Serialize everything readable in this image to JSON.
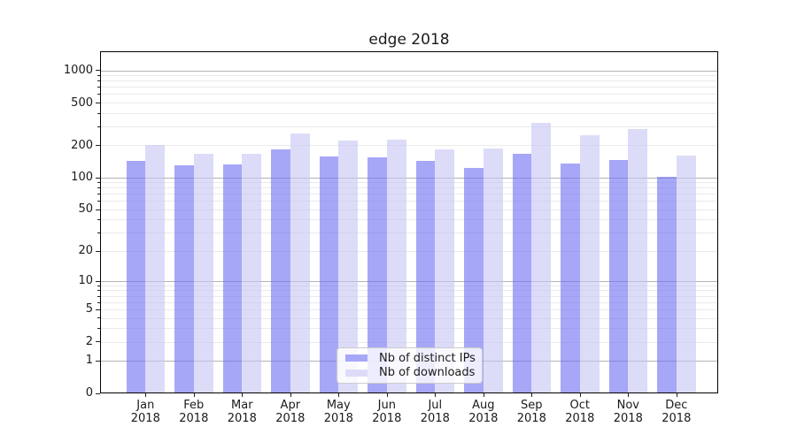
{
  "title": "edge 2018",
  "legend": {
    "items": [
      {
        "label": "Nb of distinct IPs"
      },
      {
        "label": "Nb of downloads"
      }
    ]
  },
  "axes": {
    "y_tick_labels": [
      "0",
      "1",
      "2",
      "5",
      "10",
      "20",
      "50",
      "100",
      "200",
      "500",
      "1000"
    ],
    "x_tick_labels": [
      "Jan 2018",
      "Feb 2018",
      "Mar 2018",
      "Apr 2018",
      "May 2018",
      "Jun 2018",
      "Jul 2018",
      "Aug 2018",
      "Sep 2018",
      "Oct 2018",
      "Nov 2018",
      "Dec 2018"
    ]
  },
  "chart_data": {
    "type": "bar",
    "title": "edge 2018",
    "categories": [
      "Jan 2018",
      "Feb 2018",
      "Mar 2018",
      "Apr 2018",
      "May 2018",
      "Jun 2018",
      "Jul 2018",
      "Aug 2018",
      "Sep 2018",
      "Oct 2018",
      "Nov 2018",
      "Dec 2018"
    ],
    "series": [
      {
        "name": "Nb of distinct IPs",
        "color": "#a7a7f7",
        "fill": "rgba(108,108,242,0.6)",
        "values": [
          142,
          130,
          133,
          183,
          158,
          155,
          144,
          123,
          166,
          136,
          146,
          101
        ]
      },
      {
        "name": "Nb of downloads",
        "color": "#dcdcf8",
        "fill": "rgba(197,197,243,0.6)",
        "values": [
          202,
          165,
          167,
          258,
          220,
          227,
          183,
          186,
          326,
          247,
          285,
          160
        ]
      }
    ],
    "yscale": "log10(1+v)",
    "ytick_values": [
      0,
      1,
      2,
      5,
      10,
      20,
      50,
      100,
      200,
      500,
      1000
    ],
    "ylim": [
      0,
      1500
    ],
    "grid": true,
    "legend_position": "lower center",
    "colors": {
      "grid_major": "#b3b3b3",
      "grid_minor": "#eaeaea",
      "spine": "#000000",
      "text": "#1a1a1a"
    }
  }
}
